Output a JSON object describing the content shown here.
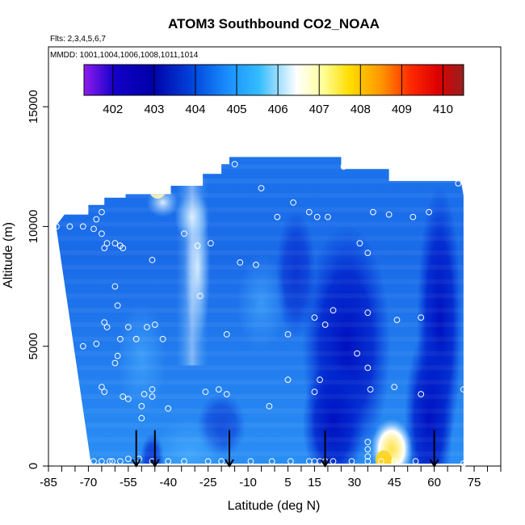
{
  "chart_data": {
    "type": "heatmap",
    "title": "ATOM3 Southbound CO2_NOAA",
    "flights_note": "Flts: 2,3,4,5,6,7",
    "dates_note": "MMDD: 1001,1004,1006,1008,1011,1014",
    "xlabel": "Latitude (deg N)",
    "ylabel": "Altitude (m)",
    "xlim": [
      -85,
      85
    ],
    "ylim": [
      0,
      17500
    ],
    "x_ticks": [
      -85,
      -70,
      -55,
      -40,
      -25,
      -10,
      5,
      15,
      30,
      45,
      60,
      75
    ],
    "x_minor_step": 5,
    "y_ticks": [
      0,
      5000,
      10000,
      15000
    ],
    "colorbar": {
      "min": 401.3,
      "max": 410.5,
      "ticks": [
        402,
        403,
        404,
        405,
        406,
        407,
        408,
        409,
        410
      ],
      "colors": [
        "#8f1cf0",
        "#1400c8",
        "#0000a8",
        "#0040d8",
        "#1a90ff",
        "#33bbff",
        "#ffffff",
        "#ffff99",
        "#ffdd00",
        "#ff9900",
        "#ff2a00",
        "#dd0000",
        "#991f1f"
      ],
      "stops": [
        0,
        0.08,
        0.18,
        0.28,
        0.38,
        0.46,
        0.56,
        0.63,
        0.7,
        0.78,
        0.86,
        0.93,
        1
      ]
    },
    "surface_arrows_lat": [
      -52,
      -45,
      -17,
      19,
      60
    ],
    "samples": [
      {
        "lat": -82,
        "alt": 10000
      },
      {
        "lat": -77,
        "alt": 10000
      },
      {
        "lat": -72,
        "alt": 10000
      },
      {
        "lat": -67,
        "alt": 10300
      },
      {
        "lat": -65,
        "alt": 10600
      },
      {
        "lat": -68,
        "alt": 9900
      },
      {
        "lat": -65,
        "alt": 9700
      },
      {
        "lat": -63,
        "alt": 9300
      },
      {
        "lat": -60,
        "alt": 9300
      },
      {
        "lat": -58,
        "alt": 9200
      },
      {
        "lat": -57,
        "alt": 9100
      },
      {
        "lat": -64,
        "alt": 9100
      },
      {
        "lat": -46,
        "alt": 8600
      },
      {
        "lat": -34,
        "alt": 9700
      },
      {
        "lat": -29,
        "alt": 9200
      },
      {
        "lat": -24,
        "alt": 9300
      },
      {
        "lat": -13,
        "alt": 8500
      },
      {
        "lat": -7,
        "alt": 8400
      },
      {
        "lat": -60,
        "alt": 7500
      },
      {
        "lat": -59,
        "alt": 6700
      },
      {
        "lat": -64,
        "alt": 6000
      },
      {
        "lat": -63,
        "alt": 5800
      },
      {
        "lat": -55,
        "alt": 5800
      },
      {
        "lat": -48,
        "alt": 5800
      },
      {
        "lat": -45,
        "alt": 5900
      },
      {
        "lat": -28,
        "alt": 7100
      },
      {
        "lat": -52,
        "alt": 5300
      },
      {
        "lat": -58,
        "alt": 5300
      },
      {
        "lat": -72,
        "alt": 5000
      },
      {
        "lat": -67,
        "alt": 5100
      },
      {
        "lat": -59,
        "alt": 4600
      },
      {
        "lat": -60,
        "alt": 4300
      },
      {
        "lat": -42,
        "alt": 5300
      },
      {
        "lat": -18,
        "alt": 5500
      },
      {
        "lat": 5,
        "alt": 5500
      },
      {
        "lat": 5,
        "alt": 3600
      },
      {
        "lat": -65,
        "alt": 3300
      },
      {
        "lat": -64,
        "alt": 3100
      },
      {
        "lat": -57,
        "alt": 2900
      },
      {
        "lat": -55,
        "alt": 2800
      },
      {
        "lat": -49,
        "alt": 3000
      },
      {
        "lat": -46,
        "alt": 3200
      },
      {
        "lat": -46,
        "alt": 2900
      },
      {
        "lat": -26,
        "alt": 3100
      },
      {
        "lat": -21,
        "alt": 3200
      },
      {
        "lat": -18,
        "alt": 3000
      },
      {
        "lat": -2,
        "alt": 2500
      },
      {
        "lat": -50,
        "alt": 2000
      },
      {
        "lat": -50,
        "alt": 2500
      },
      {
        "lat": -40,
        "alt": 2400
      },
      {
        "lat": -15,
        "alt": 12600
      },
      {
        "lat": -5,
        "alt": 11600
      },
      {
        "lat": 7,
        "alt": 11000
      },
      {
        "lat": 1,
        "alt": 10400
      },
      {
        "lat": 13,
        "alt": 10600
      },
      {
        "lat": 16,
        "alt": 10400
      },
      {
        "lat": 20,
        "alt": 10400
      },
      {
        "lat": 37,
        "alt": 10600
      },
      {
        "lat": 43,
        "alt": 10500
      },
      {
        "lat": 52,
        "alt": 10400
      },
      {
        "lat": 58,
        "alt": 10600
      },
      {
        "lat": 26,
        "alt": 12500
      },
      {
        "lat": 69,
        "alt": 11800
      },
      {
        "lat": 32,
        "alt": 9300
      },
      {
        "lat": 35,
        "alt": 8900
      },
      {
        "lat": 22,
        "alt": 6500
      },
      {
        "lat": 15,
        "alt": 6200
      },
      {
        "lat": 19,
        "alt": 5900
      },
      {
        "lat": 35,
        "alt": 6400
      },
      {
        "lat": 46,
        "alt": 6100
      },
      {
        "lat": 55,
        "alt": 6200
      },
      {
        "lat": 31,
        "alt": 4700
      },
      {
        "lat": 35,
        "alt": 4100
      },
      {
        "lat": 17,
        "alt": 3600
      },
      {
        "lat": 15,
        "alt": 3100
      },
      {
        "lat": 36,
        "alt": 3200
      },
      {
        "lat": 45,
        "alt": 3300
      },
      {
        "lat": 55,
        "alt": 3000
      },
      {
        "lat": 71,
        "alt": 3200
      },
      {
        "lat": 35,
        "alt": 1000
      },
      {
        "lat": 35,
        "alt": 700
      },
      {
        "lat": 35,
        "alt": 400
      },
      {
        "lat": -68,
        "alt": 200
      },
      {
        "lat": -65,
        "alt": 200
      },
      {
        "lat": -62,
        "alt": 200
      },
      {
        "lat": -61,
        "alt": 200
      },
      {
        "lat": -58,
        "alt": 200
      },
      {
        "lat": -55,
        "alt": 300
      },
      {
        "lat": -51,
        "alt": 300
      },
      {
        "lat": -46,
        "alt": 200
      },
      {
        "lat": -40,
        "alt": 200
      },
      {
        "lat": -34,
        "alt": 200
      },
      {
        "lat": -25,
        "alt": 200
      },
      {
        "lat": -20,
        "alt": 200
      },
      {
        "lat": -9,
        "alt": 200
      },
      {
        "lat": -1,
        "alt": 200
      },
      {
        "lat": 6,
        "alt": 200
      },
      {
        "lat": 13,
        "alt": 200
      },
      {
        "lat": 15,
        "alt": 200
      },
      {
        "lat": 17,
        "alt": 200
      },
      {
        "lat": 19,
        "alt": 200
      },
      {
        "lat": 22,
        "alt": 200
      },
      {
        "lat": 29,
        "alt": 200
      },
      {
        "lat": 35,
        "alt": 200
      },
      {
        "lat": 40,
        "alt": 200
      },
      {
        "lat": 45,
        "alt": 200
      },
      {
        "lat": 53,
        "alt": 200
      },
      {
        "lat": 71,
        "alt": 100
      }
    ]
  }
}
